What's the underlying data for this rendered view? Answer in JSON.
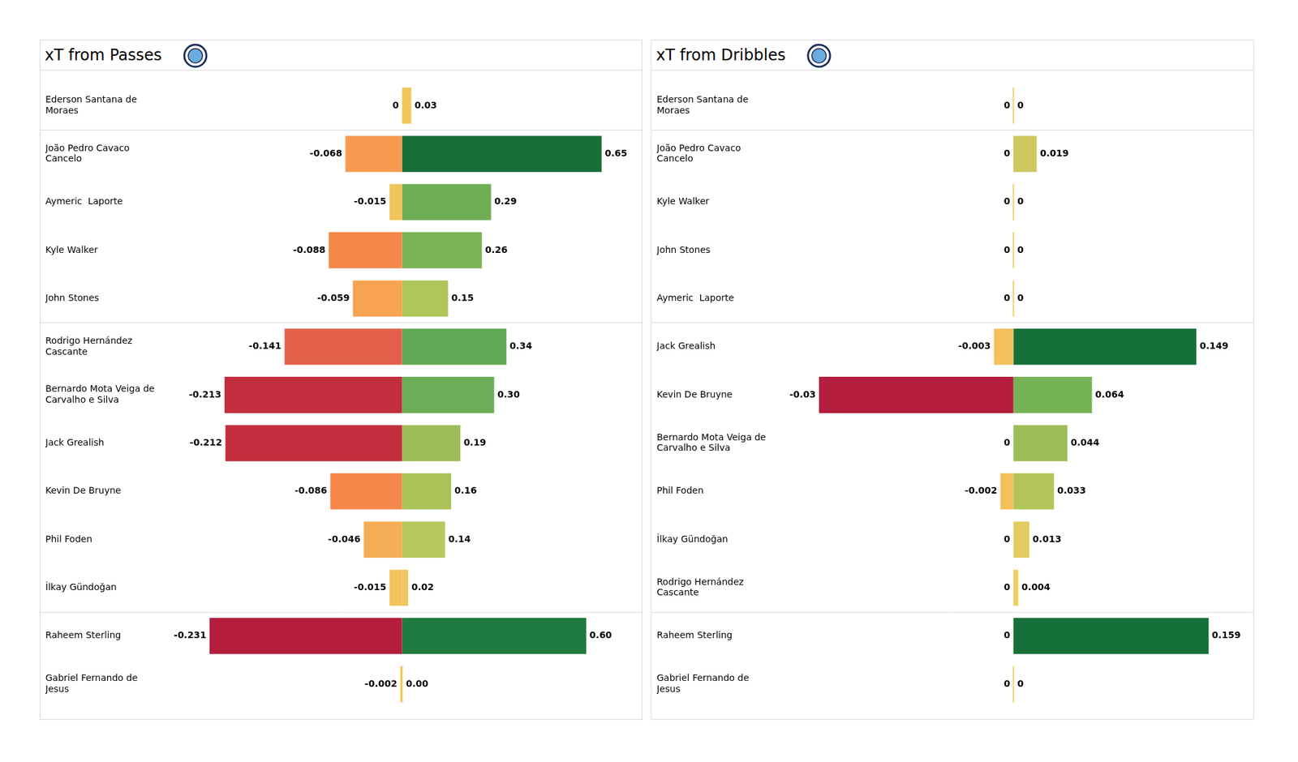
{
  "chart_data": [
    {
      "type": "bar",
      "orientation": "horizontal",
      "title": "xT from Passes",
      "categories": [
        "Ederson Santana de Moraes",
        "João Pedro Cavaco Cancelo",
        "Aymeric  Laporte",
        "Kyle Walker",
        "John Stones",
        "Rodrigo Hernández Cascante",
        "Bernardo Mota Veiga de Carvalho e Silva",
        "Jack Grealish",
        "Kevin De Bruyne",
        "Phil Foden",
        "İlkay Gündoğan",
        "Raheem Sterling",
        "Gabriel Fernando de Jesus"
      ],
      "series": [
        {
          "axis": "x2",
          "values": [
            0,
            -0.068,
            -0.015,
            -0.088,
            -0.059,
            -0.141,
            -0.213,
            -0.212,
            -0.086,
            -0.046,
            -0.015,
            -0.231,
            -0.002
          ],
          "value_labels": [
            "0",
            "-0.068",
            "-0.015",
            "-0.088",
            "-0.059",
            "-0.141",
            "-0.213",
            "-0.212",
            "-0.086",
            "-0.046",
            "-0.015",
            "-0.231",
            "-0.002"
          ],
          "colors": [
            "#f2c45c",
            "#f89b50",
            "#f2c45c",
            "#f5874b",
            "#f7a352",
            "#e2604a",
            "#c22e3e",
            "#c22e3e",
            "#f5874b",
            "#f5ae55",
            "#f2c45c",
            "#b41d3c",
            "#f0c75e"
          ]
        },
        {
          "axis": "x",
          "values": [
            0.03,
            0.65,
            0.29,
            0.26,
            0.15,
            0.34,
            0.3,
            0.19,
            0.16,
            0.14,
            0.02,
            0.6,
            0
          ],
          "value_labels": [
            "0.03",
            "0.65",
            "0.29",
            "0.26",
            "0.15",
            "0.34",
            "0.30",
            "0.19",
            "0.16",
            "0.14",
            "0.02",
            "0.60",
            "0.00"
          ],
          "colors": [
            "#f0c75e",
            "#17703a",
            "#6fae57",
            "#7ab356",
            "#b0c55a",
            "#62a955",
            "#6cad57",
            "#9dbd58",
            "#acc35a",
            "#b6c75b",
            "#f0c75e",
            "#1e7a3e",
            "#eecf62"
          ]
        }
      ],
      "xlim": [
        -0.76,
        0.76
      ],
      "x2lim": [
        -0.28,
        0.28
      ],
      "grid": false,
      "tick_labels": "y",
      "data_labels": true
    },
    {
      "type": "bar",
      "orientation": "horizontal",
      "title": "xT from Dribbles",
      "categories": [
        "Ederson Santana de Moraes",
        "João Pedro Cavaco Cancelo",
        "Kyle Walker",
        "John Stones",
        "Aymeric  Laporte",
        "Jack Grealish",
        "Kevin De Bruyne",
        "Bernardo Mota Veiga de Carvalho e Silva",
        "Phil Foden",
        "İlkay Gündoğan",
        "Rodrigo Hernández Cascante",
        "Raheem Sterling",
        "Gabriel Fernando de Jesus"
      ],
      "series": [
        {
          "axis": "x2",
          "values": [
            0,
            0,
            0,
            0,
            0,
            -0.003,
            -0.03,
            0,
            -0.002,
            0,
            0,
            0,
            0
          ],
          "value_labels": [
            "0",
            "0",
            "0",
            "0",
            "0",
            "-0.003",
            "-0.03",
            "0",
            "-0.002",
            "0",
            "0",
            "0",
            "0"
          ],
          "colors": [
            "#f4c05c",
            "#f4c05c",
            "#f4c05c",
            "#f4c05c",
            "#f4c05c",
            "#f4c05c",
            "#b41d3c",
            "#f4c05c",
            "#f4c05c",
            "#f4c05c",
            "#f4c05c",
            "#f4c05c",
            "#f4c05c"
          ]
        },
        {
          "axis": "x",
          "values": [
            0,
            0.019,
            0,
            0,
            0,
            0.149,
            0.064,
            0.044,
            0.033,
            0.013,
            0.004,
            0.159,
            0
          ],
          "value_labels": [
            "0",
            "0.019",
            "0",
            "0",
            "0",
            "0.149",
            "0.064",
            "0.044",
            "0.033",
            "0.013",
            "0.004",
            "0.159",
            "0"
          ],
          "colors": [
            "#efcf62",
            "#cfc75f",
            "#efcf62",
            "#efcf62",
            "#efcf62",
            "#16703a",
            "#76b356",
            "#9dbd58",
            "#b1c55a",
            "#e3cc60",
            "#efd060",
            "#16703a",
            "#efcf62"
          ]
        }
      ],
      "xlim": [
        -0.19,
        0.19
      ],
      "x2lim": [
        -0.036,
        0.036
      ],
      "grid": false,
      "tick_labels": "y",
      "data_labels": true
    }
  ]
}
